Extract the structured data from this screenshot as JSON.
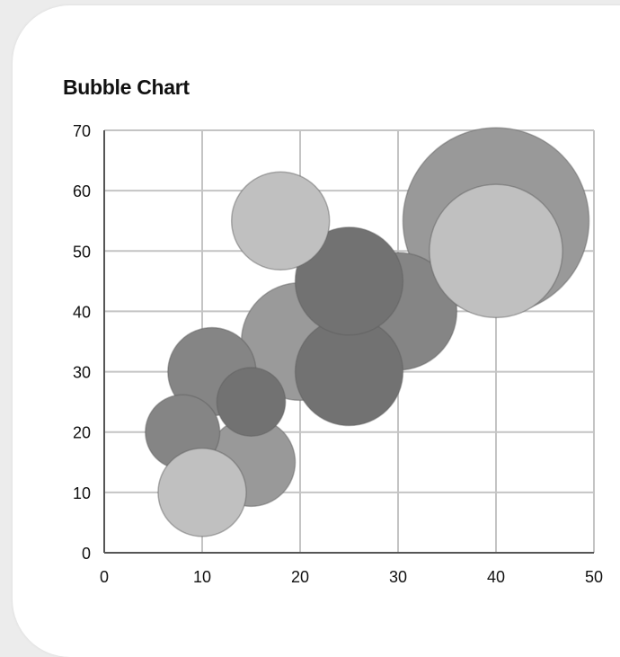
{
  "chart_data": {
    "type": "bubble",
    "title": "Bubble Chart",
    "xlabel": "",
    "ylabel": "",
    "xlim": [
      0,
      50
    ],
    "ylim": [
      0,
      70
    ],
    "xticks": [
      "0",
      "10",
      "20",
      "30",
      "40",
      "50"
    ],
    "yticks": [
      "0",
      "10",
      "20",
      "30",
      "40",
      "50",
      "60",
      "70"
    ],
    "grid": true,
    "legend": "none",
    "points": [
      {
        "x": 40,
        "y": 55,
        "r": 9.5,
        "color": "#999999"
      },
      {
        "x": 30,
        "y": 40,
        "r": 6.0,
        "color": "#858585"
      },
      {
        "x": 20,
        "y": 35,
        "r": 6.0,
        "color": "#9a9a9a"
      },
      {
        "x": 25,
        "y": 30,
        "r": 5.5,
        "color": "#727272"
      },
      {
        "x": 25,
        "y": 45,
        "r": 5.5,
        "color": "#727272"
      },
      {
        "x": 11,
        "y": 30,
        "r": 4.5,
        "color": "#858585"
      },
      {
        "x": 15,
        "y": 15,
        "r": 4.5,
        "color": "#999999"
      },
      {
        "x": 8,
        "y": 20,
        "r": 3.8,
        "color": "#858585"
      },
      {
        "x": 15,
        "y": 25,
        "r": 3.5,
        "color": "#727272"
      },
      {
        "x": 18,
        "y": 55,
        "r": 5.0,
        "color": "#c0c0c0"
      },
      {
        "x": 10,
        "y": 10,
        "r": 4.5,
        "color": "#c0c0c0"
      },
      {
        "x": 40,
        "y": 50,
        "r": 6.8,
        "color": "#c0c0c0"
      }
    ]
  }
}
